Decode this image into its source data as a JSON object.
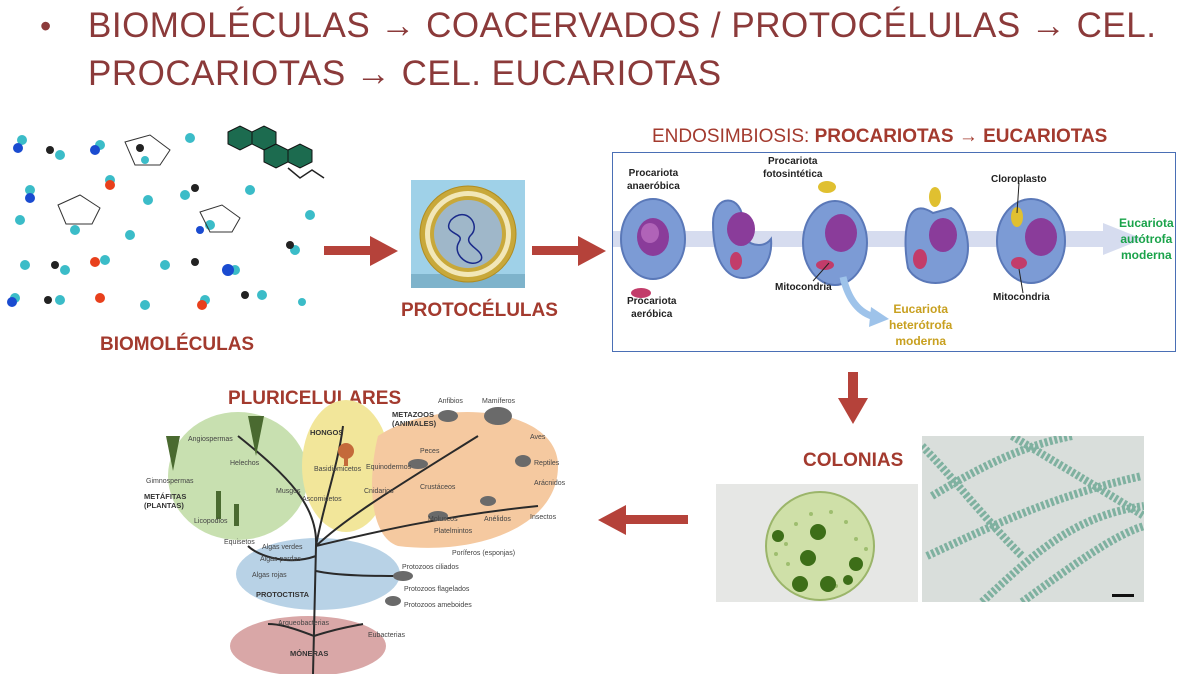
{
  "title": {
    "bullet": "•",
    "line1": "BIOMOLÉCULAS → COACERVADOS / PROTOCÉLULAS → CEL.",
    "line2": "PROCARIOTAS → CEL. EUCARIOTAS"
  },
  "labels": {
    "biomoleculas": "BIOMOLÉCULAS",
    "protocelulas": "PROTOCÉLULAS",
    "colonias": "COLONIAS",
    "pluricelulares": "PLURICELULARES"
  },
  "endosymbiosis": {
    "title_prefix": "ENDOSIMBIOSIS: ",
    "title_bold": "PROCARIOTAS → EUCARIOTAS",
    "procariota_anaerobica_1": "Procariota",
    "procariota_anaerobica_2": "anaeróbica",
    "procariota_aerobica_1": "Procariota",
    "procariota_aerobica_2": "aeróbica",
    "procariota_fotosintetica_1": "Procariota",
    "procariota_fotosintetica_2": "fotosintética",
    "mitocondria_1": "Mitocondria",
    "mitocondria_2": "Mitocondria",
    "cloroplasto": "Cloroplasto",
    "eucariota_autotrofa_1": "Eucariota",
    "eucariota_autotrofa_2": "autótrofa",
    "eucariota_autotrofa_3": "moderna",
    "eucariota_heterotrofa_1": "Eucariota",
    "eucariota_heterotrofa_2": "heterótrofa",
    "eucariota_heterotrofa_3": "moderna"
  },
  "tree": {
    "groups": {
      "hongos": "HONGOS",
      "metazoos_1": "METAZOOS",
      "metazoos_2": "(ANIMALES)",
      "metafitas_1": "METÁFITAS",
      "metafitas_2": "(PLANTAS)",
      "protoctista": "PROTOCTISTA",
      "moneras": "MÓNERAS"
    },
    "labels": {
      "angiospermas": "Angiospermas",
      "helechos": "Helechos",
      "gimnospermas": "Gimnospermas",
      "licopodios": "Licopodios",
      "equisetos": "Equisetos",
      "musgos": "Musgos",
      "basidiomicetos": "Basidiomicetos",
      "ascomicetos": "Ascomicetos",
      "anfibios": "Anfibios",
      "mamiferos": "Mamíferos",
      "aves": "Aves",
      "peces": "Peces",
      "reptiles": "Reptiles",
      "aracnidos": "Arácnidos",
      "equinodermos": "Equinodermos",
      "crustaceos": "Crustáceos",
      "cnidarios": "Cnidarios",
      "insectos": "Insectos",
      "moluscos": "Moluscos",
      "anelidos": "Anélidos",
      "platelmintos": "Platelmintos",
      "poriferos": "Poríferos (esponjas)",
      "algas_verdes": "Algas verdes",
      "algas_pardas": "Algas pardas",
      "algas_rojas": "Algas rojas",
      "protozoos_ciliados": "Protozoos ciliados",
      "protozoos_flagelados": "Protozoos flagelados",
      "protozoos_ameboides": "Protozoos ameboides",
      "arqueobacterias": "Arqueobacterias",
      "eubacterias": "Eubacterias"
    }
  },
  "colors": {
    "title": "#8b3a3a",
    "label": "#a33a2e",
    "arrow": "#b5423a",
    "autotrofa": "#1aa34a",
    "heterotrofa": "#c8a020"
  }
}
